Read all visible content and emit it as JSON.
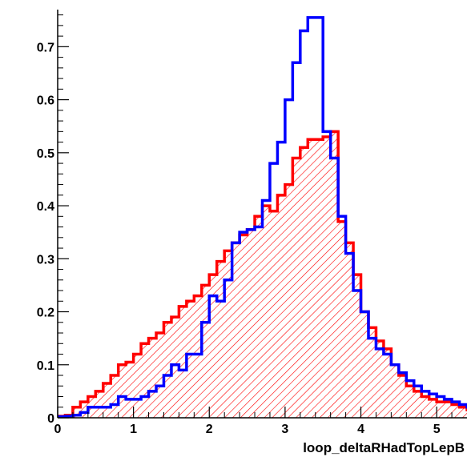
{
  "chart_data": {
    "type": "histogram",
    "title": "",
    "xlabel": "loop_deltaRHadTopLepB",
    "ylabel": "",
    "xlim": [
      0,
      5.4
    ],
    "ylim": [
      0,
      0.77
    ],
    "bin_width": 0.1,
    "x_start": 0,
    "x_ticks": [
      0,
      1,
      2,
      3,
      4,
      5
    ],
    "x_tick_labels": [
      "0",
      "1",
      "2",
      "3",
      "4",
      "5"
    ],
    "y_ticks": [
      0,
      0.1,
      0.2,
      0.3,
      0.4,
      0.5,
      0.6,
      0.7
    ],
    "y_tick_labels": [
      "0",
      "0.1",
      "0.2",
      "0.3",
      "0.4",
      "0.5",
      "0.6",
      "0.7"
    ],
    "grid": false,
    "series": [
      {
        "color": "#ff0000",
        "fill": "hatched",
        "values": [
          0.003,
          0.005,
          0.02,
          0.03,
          0.04,
          0.05,
          0.065,
          0.08,
          0.1,
          0.105,
          0.12,
          0.14,
          0.15,
          0.16,
          0.18,
          0.19,
          0.21,
          0.22,
          0.23,
          0.25,
          0.27,
          0.295,
          0.315,
          0.33,
          0.345,
          0.355,
          0.38,
          0.4,
          0.39,
          0.42,
          0.44,
          0.49,
          0.51,
          0.525,
          0.525,
          0.53,
          0.54,
          0.37,
          0.33,
          0.27,
          0.2,
          0.17,
          0.145,
          0.13,
          0.1,
          0.08,
          0.06,
          0.05,
          0.04,
          0.035,
          0.03,
          0.03,
          0.025,
          0.02,
          0.015,
          0.01,
          0.01,
          0.008,
          0.01,
          0.005,
          0.003,
          0.003
        ]
      },
      {
        "color": "#0000ff",
        "fill": "none",
        "values": [
          0.002,
          0.003,
          0.005,
          0.01,
          0.02,
          0.02,
          0.02,
          0.025,
          0.04,
          0.035,
          0.035,
          0.04,
          0.05,
          0.06,
          0.08,
          0.1,
          0.09,
          0.12,
          0.12,
          0.18,
          0.23,
          0.22,
          0.26,
          0.33,
          0.35,
          0.355,
          0.36,
          0.41,
          0.48,
          0.52,
          0.6,
          0.67,
          0.73,
          0.755,
          0.755,
          0.54,
          0.49,
          0.38,
          0.31,
          0.24,
          0.2,
          0.15,
          0.13,
          0.12,
          0.1,
          0.085,
          0.07,
          0.06,
          0.05,
          0.045,
          0.04,
          0.035,
          0.03,
          0.025,
          0.02,
          0.02,
          0.02,
          0.015,
          0.01,
          0.008,
          0.005,
          0.003
        ]
      }
    ]
  }
}
